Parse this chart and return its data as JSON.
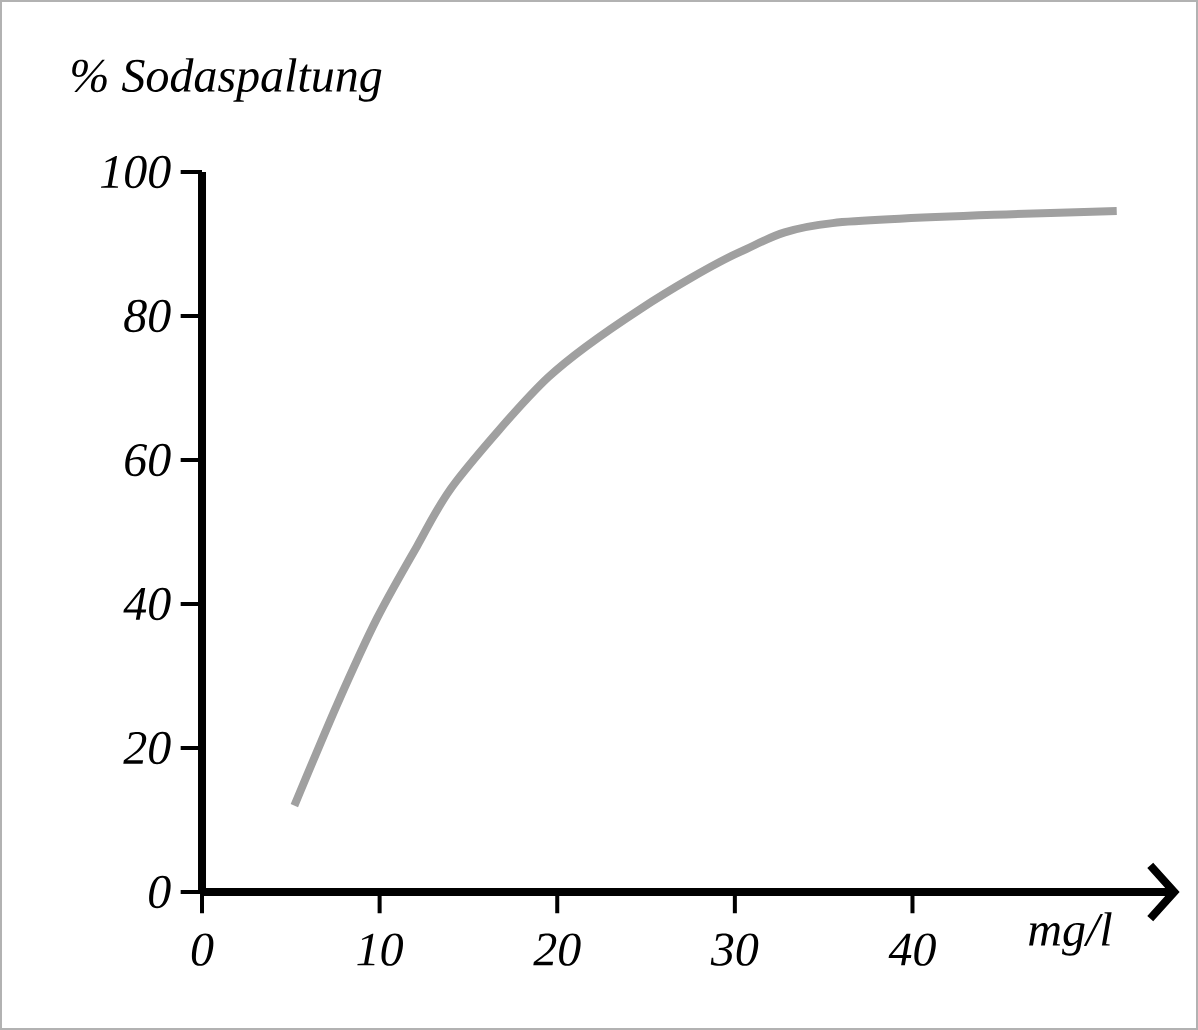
{
  "chart_data": {
    "type": "line",
    "ylabel": "% Sodaspaltung",
    "xlabel": "mg/l",
    "xlim": [
      0,
      54.5
    ],
    "ylim": [
      0,
      100
    ],
    "xticks": [
      0,
      10,
      20,
      30,
      40
    ],
    "yticks": [
      0,
      20,
      40,
      60,
      80,
      100
    ],
    "series": [
      {
        "color": "#a0a0a0",
        "x": [
          5.2,
          7.6,
          9.85,
          12.1,
          14.3,
          19.5,
          24.7,
          30.3,
          35.5,
          51.5
        ],
        "values": [
          12.0,
          26.0,
          38.0,
          48.0,
          57.0,
          71.5,
          81.0,
          88.9,
          92.9,
          94.6
        ]
      }
    ]
  }
}
